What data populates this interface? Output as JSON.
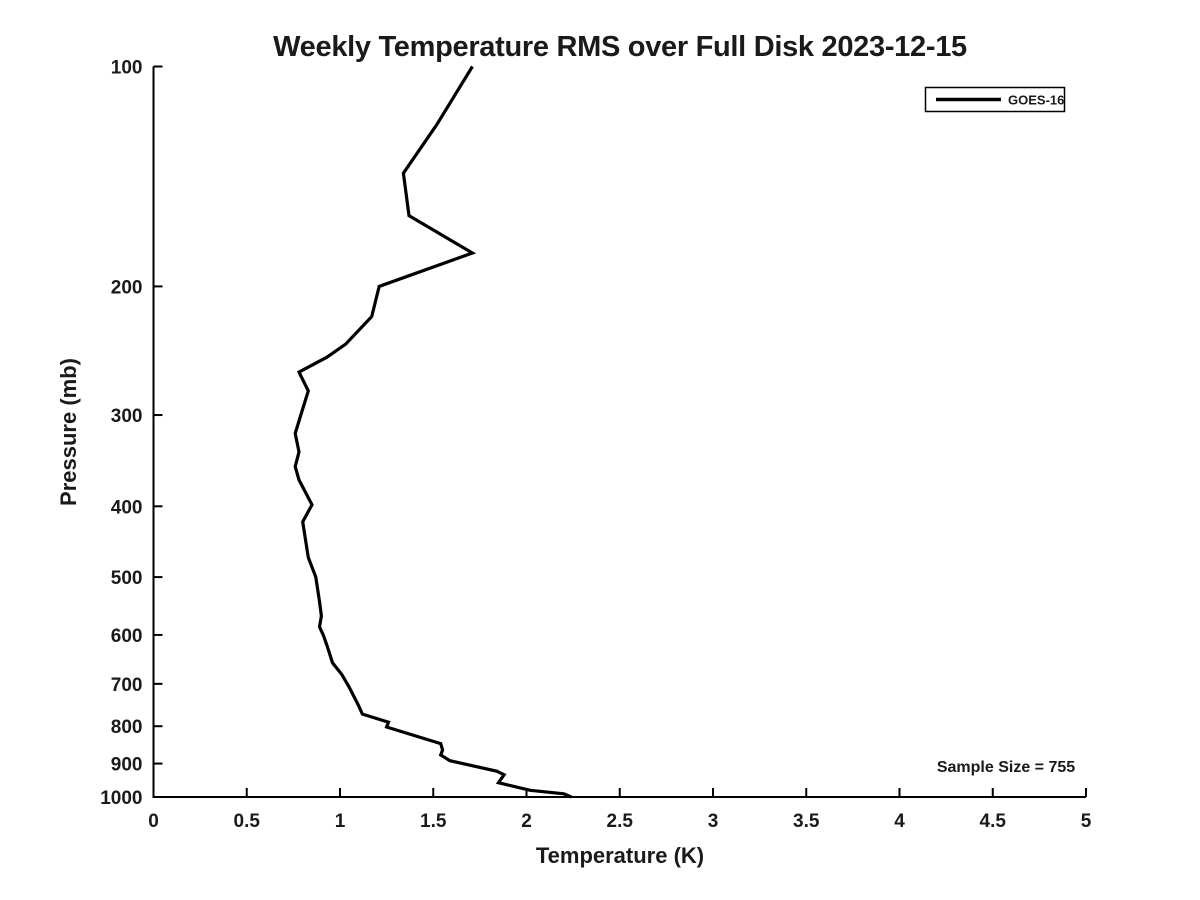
{
  "chart_data": {
    "type": "line",
    "title": "Weekly Temperature RMS over Full Disk 2023-12-15",
    "xlabel": "Temperature (K)",
    "ylabel": "Pressure (mb)",
    "xlim": [
      0,
      5
    ],
    "ylim_pressure_mb": [
      1000,
      100
    ],
    "y_scale": "log",
    "grid": false,
    "box": false,
    "tick_direction": "in",
    "x_ticks": [
      0,
      0.5,
      1,
      1.5,
      2,
      2.5,
      3,
      3.5,
      4,
      4.5,
      5
    ],
    "y_ticks": [
      100,
      200,
      300,
      400,
      500,
      600,
      700,
      800,
      900,
      1000
    ],
    "legend_position": "upper right",
    "annotation": {
      "text": "Sample Size = 755",
      "location": "lower right"
    },
    "colors": {
      "line": "#000000",
      "text": "#1a1a1a",
      "axis": "#000000",
      "background": "#ffffff"
    },
    "series": [
      {
        "name": "GOES-16",
        "color": "#000000",
        "line_width": 3.2,
        "points": [
          {
            "temperature_K": 1.71,
            "pressure_mb": 100
          },
          {
            "temperature_K": 1.52,
            "pressure_mb": 120
          },
          {
            "temperature_K": 1.34,
            "pressure_mb": 140
          },
          {
            "temperature_K": 1.37,
            "pressure_mb": 160
          },
          {
            "temperature_K": 1.71,
            "pressure_mb": 180
          },
          {
            "temperature_K": 1.21,
            "pressure_mb": 200
          },
          {
            "temperature_K": 1.17,
            "pressure_mb": 220
          },
          {
            "temperature_K": 1.03,
            "pressure_mb": 240
          },
          {
            "temperature_K": 0.93,
            "pressure_mb": 250
          },
          {
            "temperature_K": 0.78,
            "pressure_mb": 262
          },
          {
            "temperature_K": 0.83,
            "pressure_mb": 278
          },
          {
            "temperature_K": 0.79,
            "pressure_mb": 300
          },
          {
            "temperature_K": 0.76,
            "pressure_mb": 318
          },
          {
            "temperature_K": 0.78,
            "pressure_mb": 337
          },
          {
            "temperature_K": 0.76,
            "pressure_mb": 353
          },
          {
            "temperature_K": 0.78,
            "pressure_mb": 368
          },
          {
            "temperature_K": 0.85,
            "pressure_mb": 398
          },
          {
            "temperature_K": 0.8,
            "pressure_mb": 420
          },
          {
            "temperature_K": 0.83,
            "pressure_mb": 470
          },
          {
            "temperature_K": 0.87,
            "pressure_mb": 500
          },
          {
            "temperature_K": 0.89,
            "pressure_mb": 540
          },
          {
            "temperature_K": 0.9,
            "pressure_mb": 565
          },
          {
            "temperature_K": 0.89,
            "pressure_mb": 585
          },
          {
            "temperature_K": 0.91,
            "pressure_mb": 600
          },
          {
            "temperature_K": 0.93,
            "pressure_mb": 620
          },
          {
            "temperature_K": 0.96,
            "pressure_mb": 655
          },
          {
            "temperature_K": 1.01,
            "pressure_mb": 680
          },
          {
            "temperature_K": 1.05,
            "pressure_mb": 708
          },
          {
            "temperature_K": 1.1,
            "pressure_mb": 750
          },
          {
            "temperature_K": 1.12,
            "pressure_mb": 770
          },
          {
            "temperature_K": 1.26,
            "pressure_mb": 790
          },
          {
            "temperature_K": 1.25,
            "pressure_mb": 802
          },
          {
            "temperature_K": 1.54,
            "pressure_mb": 845
          },
          {
            "temperature_K": 1.55,
            "pressure_mb": 862
          },
          {
            "temperature_K": 1.54,
            "pressure_mb": 876
          },
          {
            "temperature_K": 1.59,
            "pressure_mb": 892
          },
          {
            "temperature_K": 1.84,
            "pressure_mb": 922
          },
          {
            "temperature_K": 1.88,
            "pressure_mb": 932
          },
          {
            "temperature_K": 1.85,
            "pressure_mb": 956
          },
          {
            "temperature_K": 2.02,
            "pressure_mb": 979
          },
          {
            "temperature_K": 2.2,
            "pressure_mb": 990
          },
          {
            "temperature_K": 2.24,
            "pressure_mb": 1000
          }
        ]
      }
    ]
  }
}
